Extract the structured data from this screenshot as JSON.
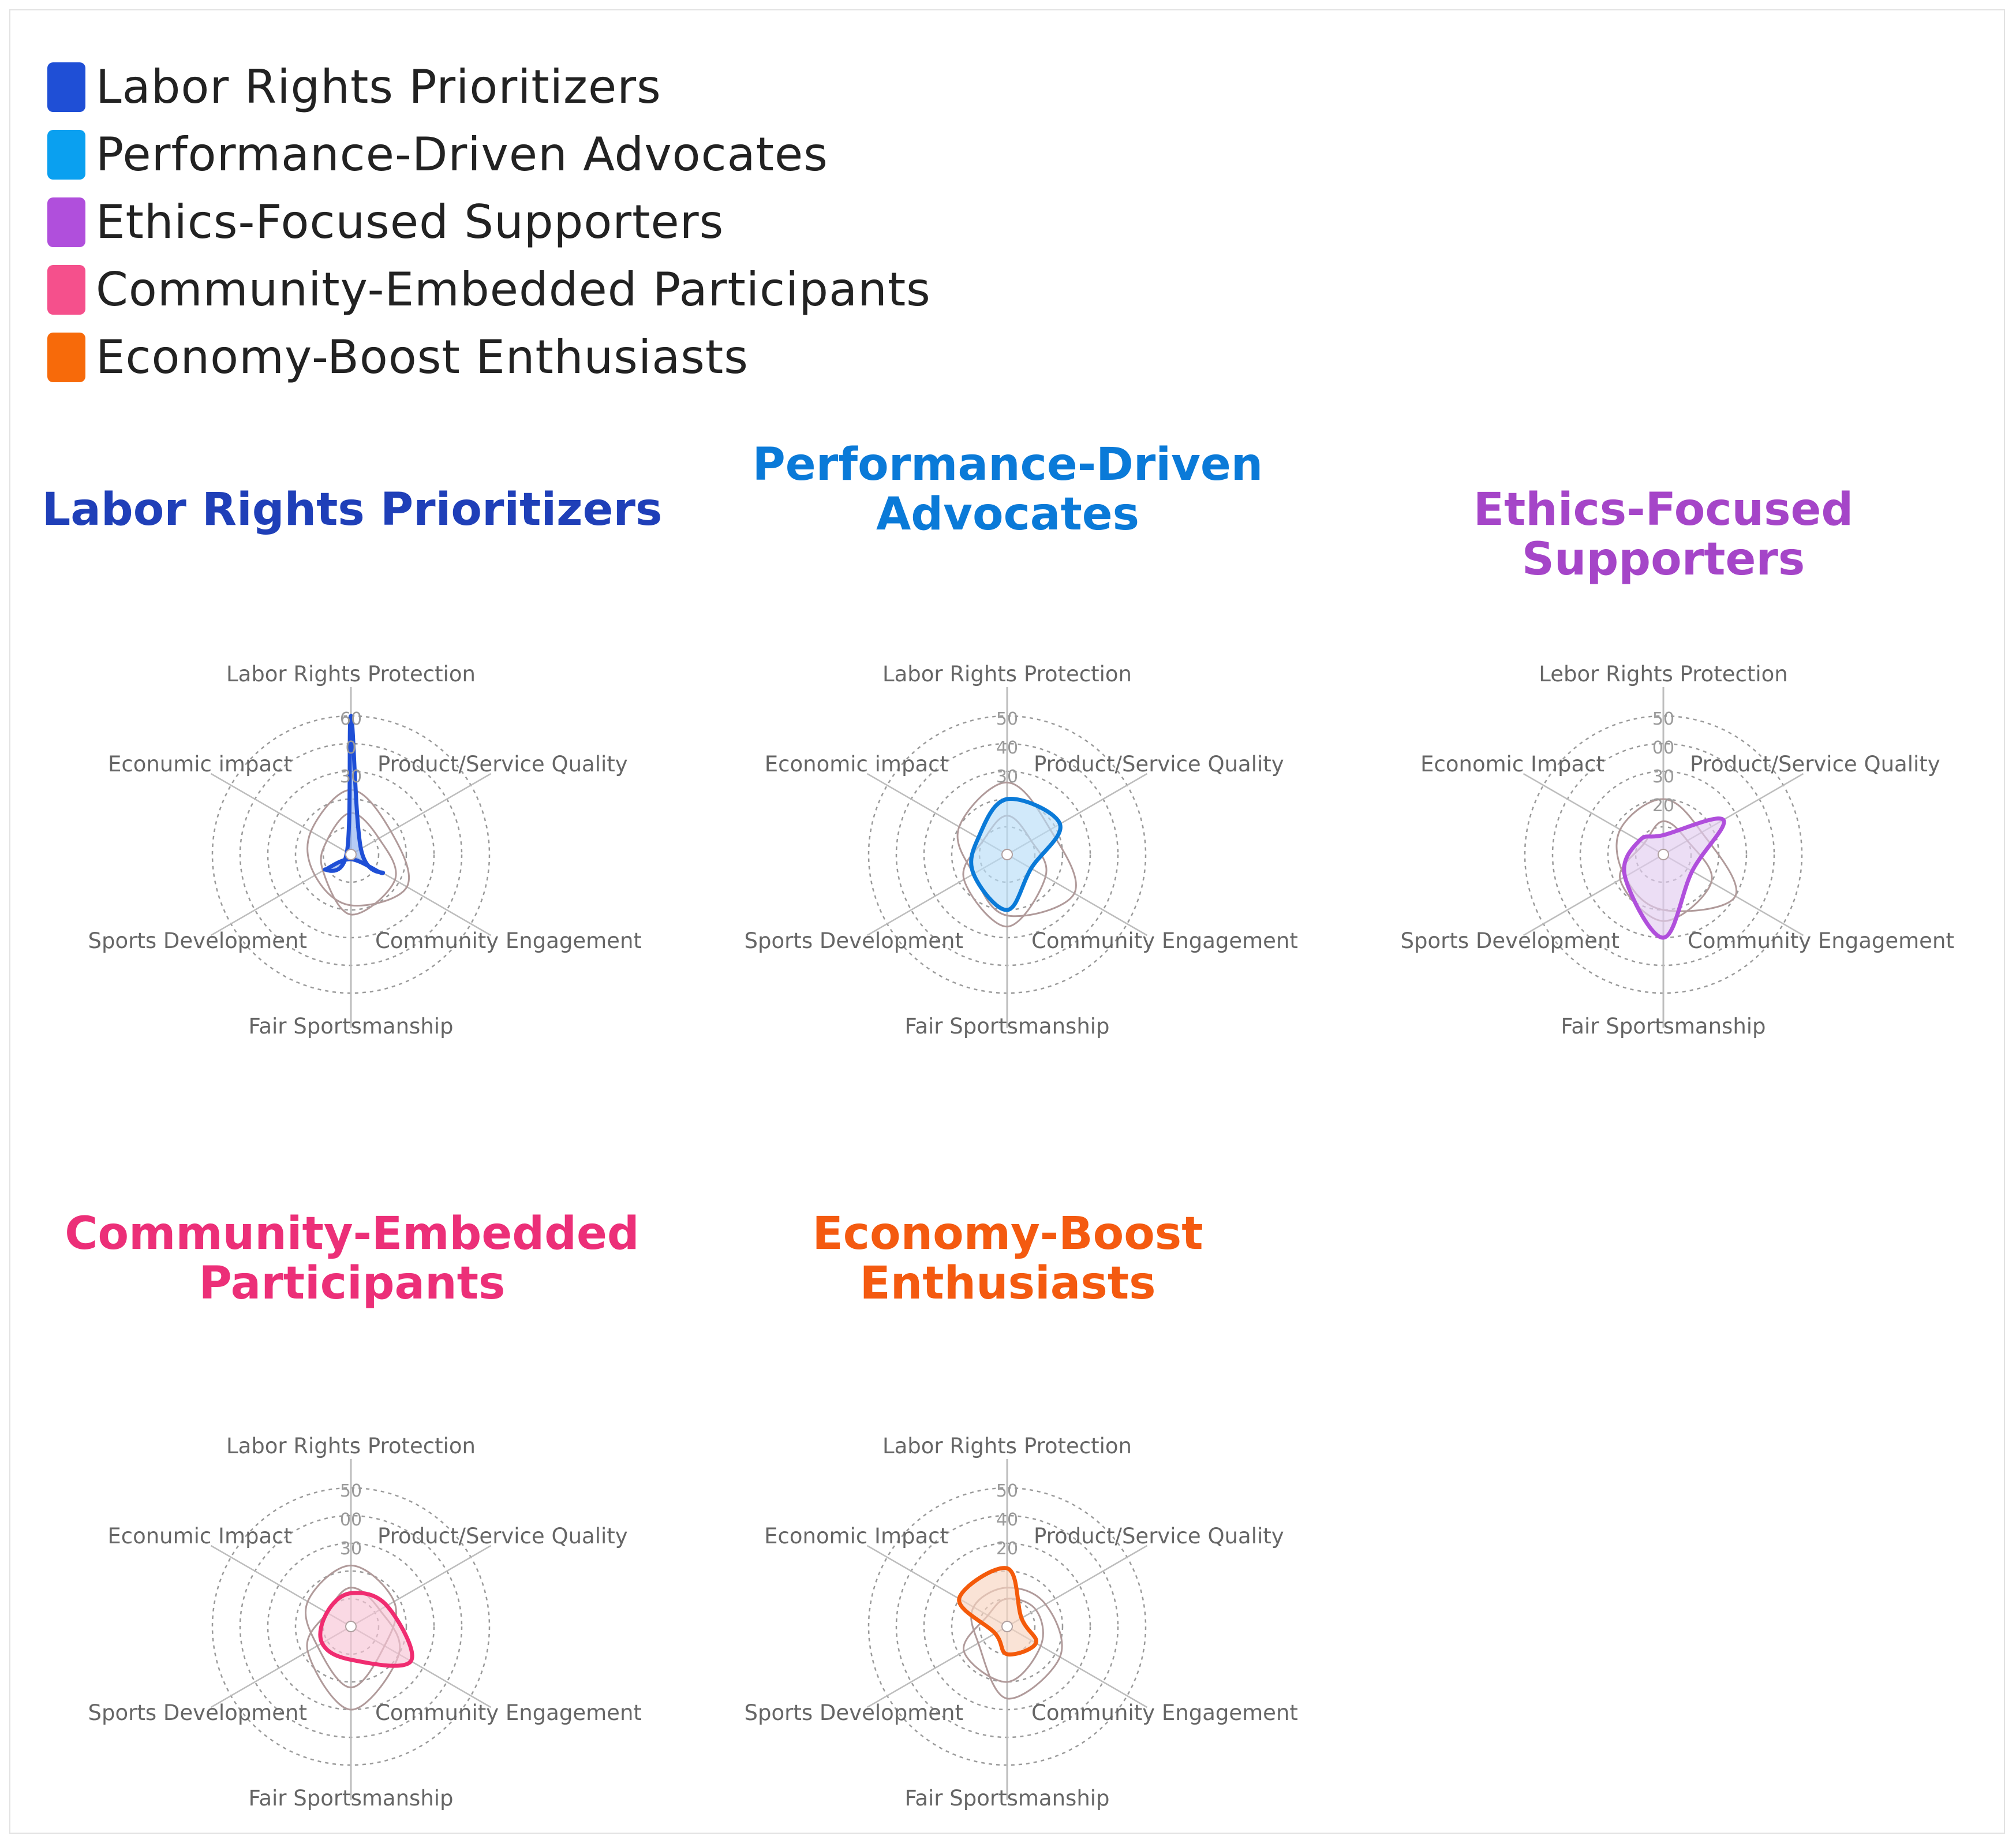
{
  "legend": [
    {
      "label": "Labor Rights Prioritizers",
      "color": "#1f4fd6"
    },
    {
      "label": "Performance-Driven Advocates",
      "color": "#0aa0f0"
    },
    {
      "label": "Ethics-Focused Supporters",
      "color": "#b04fdc"
    },
    {
      "label": "Community-Embedded Participants",
      "color": "#f5508c"
    },
    {
      "label": "Economy-Boost Enthusiasts",
      "color": "#f76a0a"
    }
  ],
  "chart_data": [
    {
      "type": "radar",
      "title": "Labor Rights Prioritizers",
      "title_color": "#1f3fb8",
      "line_color": "#1f4fd6",
      "fill_color": "#8fb0f0",
      "axes": [
        "Labor Rights Protection",
        "Product/Service Quality",
        "Community Engagement",
        "Fair Sportsmanship",
        "Sports Development",
        "Economic Impact"
      ],
      "axis_label_texts": [
        "Labor Rights Protection",
        "Product/Service Quality",
        "Community Engagement",
        "Fair Sportsmanship",
        "Sports Development",
        "Econumic impact"
      ],
      "ticks": [
        "60",
        "0",
        "30"
      ],
      "rmax": 60,
      "values": [
        60,
        5,
        16,
        2,
        13,
        2
      ],
      "grey_series": [
        [
          28,
          20,
          28,
          22,
          18,
          20
        ],
        [
          18,
          14,
          22,
          26,
          14,
          12
        ]
      ]
    },
    {
      "type": "radar",
      "title": "Performance-Driven\nAdvocates",
      "title_color": "#0a7ad8",
      "line_color": "#0a7ad8",
      "fill_color": "#b8ddf7",
      "axes": [
        "Labor Rights Protection",
        "Product/Service Quality",
        "Community Engagement",
        "Fair Sportsmanship",
        "Sports Development",
        "Economic Impact"
      ],
      "axis_label_texts": [
        "Labor Rights Protection",
        "Product/Service Quality",
        "Community Engagement",
        "Fair Sportsmanship",
        "Sports Development",
        "Economic impact"
      ],
      "ticks": [
        "50",
        "40",
        "30"
      ],
      "rmax": 50,
      "values": [
        20,
        22,
        10,
        20,
        14,
        12
      ],
      "grey_series": [
        [
          26,
          18,
          28,
          22,
          14,
          20
        ],
        [
          14,
          10,
          16,
          26,
          18,
          10
        ]
      ]
    },
    {
      "type": "radar",
      "title": "Ethics-Focused Supporters",
      "title_color": "#a545c8",
      "line_color": "#b04fdc",
      "fill_color": "#e2cdf0",
      "axes": [
        "Labor Rights Protection",
        "Product/Service Quality",
        "Community Engagement",
        "Fair Sportsmanship",
        "Sports Development",
        "Economic Impact"
      ],
      "axis_label_texts": [
        "Lebor Rights Protection",
        "Product/Service Quality",
        "Community Engagement",
        "Fair Sportsmanship",
        "Sports Development",
        "Economic Impact"
      ],
      "ticks": [
        "50",
        "00",
        "30",
        "20"
      ],
      "rmax": 50,
      "values": [
        7,
        25,
        12,
        30,
        16,
        10
      ],
      "grey_series": [
        [
          20,
          16,
          30,
          20,
          16,
          18
        ],
        [
          12,
          10,
          20,
          24,
          18,
          8
        ]
      ]
    },
    {
      "type": "radar",
      "title": "Community-Embedded\nParticipants",
      "title_color": "#ec2f78",
      "line_color": "#f02c70",
      "fill_color": "#f7c4d6",
      "axes": [
        "Labor Rights Protection",
        "Product/Service Quality",
        "Community Engagement",
        "Fair Sportsmanship",
        "Sports Development",
        "Economic Impact"
      ],
      "axis_label_texts": [
        "Labor Rights Protection",
        "Product/Service Quality",
        "Community Engagement",
        "Fair Sportsmanship",
        "Sports Development",
        "Econumic Impact"
      ],
      "ticks": [
        "50",
        "00",
        "30"
      ],
      "rmax": 50,
      "values": [
        12,
        15,
        25,
        12,
        12,
        10
      ],
      "grey_series": [
        [
          22,
          18,
          14,
          22,
          14,
          18
        ],
        [
          14,
          12,
          20,
          30,
          18,
          10
        ]
      ]
    },
    {
      "type": "radar",
      "title": "Economy-Boost\nEnthusiasts",
      "title_color": "#f45a10",
      "line_color": "#f45a0a",
      "fill_color": "#f8d4c0",
      "axes": [
        "Labor Rights Protection",
        "Product/Service Quality",
        "Community Engagement",
        "Fair Sportsmanship",
        "Sports Development",
        "Economic Impact"
      ],
      "axis_label_texts": [
        "Labor Rights Protection",
        "Product/Service Quality",
        "Community Engagement",
        "Fair Sportsmanship",
        "Sports Development",
        "Economic Impact"
      ],
      "ticks": [
        "50",
        "40",
        "20"
      ],
      "rmax": 50,
      "values": [
        21,
        6,
        12,
        10,
        5,
        20
      ],
      "grey_series": [
        [
          14,
          16,
          22,
          26,
          12,
          14
        ],
        [
          10,
          12,
          14,
          20,
          18,
          8
        ]
      ]
    }
  ]
}
